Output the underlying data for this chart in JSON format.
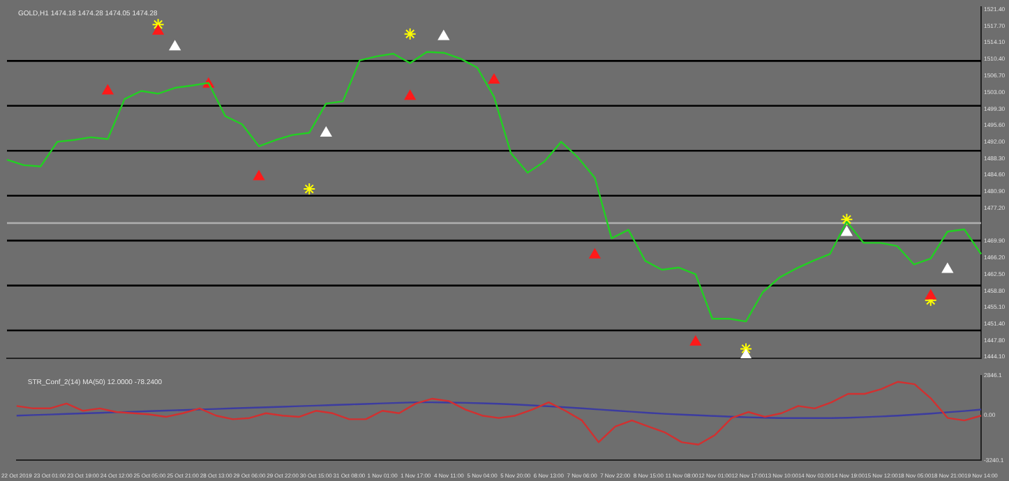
{
  "chart_data": [
    {
      "type": "line",
      "title": "GOLD,H1 1474.18 1474.28 1474.05 1474.28",
      "categories": [
        null,
        null,
        null,
        null,
        null,
        null,
        null,
        null,
        null,
        null,
        null,
        null,
        null,
        null,
        null,
        null,
        null,
        null,
        null,
        null,
        null,
        null,
        null,
        null,
        null,
        null,
        null,
        null,
        null,
        null,
        null,
        null,
        null,
        null,
        null,
        null,
        null,
        null,
        null,
        null,
        null,
        null,
        null,
        null,
        null,
        null,
        null,
        null,
        null,
        null,
        null,
        null,
        null,
        null,
        null,
        null,
        null,
        null,
        null
      ],
      "series": [
        {
          "type": "line",
          "color": "#22d022",
          "values": [
            1488.0,
            1486.8,
            1486.5,
            1492.0,
            1492.4,
            1493.0,
            1492.6,
            1501.5,
            1503.3,
            1502.7,
            1504.0,
            1504.5,
            1505.1,
            1497.7,
            1495.9,
            1491.0,
            1492.4,
            1493.5,
            1494.0,
            1500.5,
            1501.0,
            1510.1,
            1511.0,
            1511.6,
            1509.5,
            1512.0,
            1511.8,
            1510.5,
            1508.5,
            1502.0,
            1489.5,
            1485.1,
            1487.6,
            1492.0,
            1488.5,
            1484.0,
            1470.5,
            1472.4,
            1465.5,
            1463.5,
            1464.0,
            1462.5,
            1452.6,
            1452.6,
            1452.0,
            1458.5,
            1461.8,
            1463.8,
            1465.5,
            1467.0,
            1474.2,
            1469.5,
            1469.5,
            1468.8,
            1464.7,
            1466.0,
            1472.0,
            1472.5,
            1467.0
          ]
        },
        {
          "type": "scatter",
          "color": "#ff1a1a",
          "marker": "triangle",
          "values": [
            null,
            null,
            null,
            null,
            null,
            null,
            1503.3,
            null,
            null,
            1516.6,
            null,
            null,
            1504.8,
            null,
            null,
            1484.2,
            null,
            null,
            null,
            null,
            null,
            null,
            null,
            null,
            1502.1,
            null,
            null,
            null,
            null,
            1505.7,
            null,
            null,
            null,
            null,
            null,
            1466.8,
            null,
            null,
            null,
            null,
            null,
            1447.4,
            null,
            null,
            null,
            null,
            null,
            null,
            null,
            null,
            null,
            null,
            null,
            null,
            null,
            1457.7,
            null,
            null,
            null
          ]
        },
        {
          "type": "scatter",
          "color": "#ffffff",
          "marker": "triangle",
          "values": [
            null,
            null,
            null,
            null,
            null,
            null,
            null,
            null,
            null,
            null,
            1513.1,
            null,
            null,
            null,
            null,
            null,
            null,
            null,
            null,
            1493.9,
            null,
            null,
            null,
            null,
            null,
            null,
            1515.4,
            null,
            null,
            null,
            null,
            null,
            null,
            null,
            null,
            null,
            null,
            null,
            null,
            null,
            null,
            null,
            null,
            null,
            1444.4,
            null,
            null,
            null,
            null,
            null,
            1471.8,
            null,
            null,
            null,
            null,
            null,
            1463.6,
            null,
            null
          ]
        },
        {
          "type": "scatter",
          "color": "#ffff00",
          "marker": "cross",
          "values": [
            null,
            null,
            null,
            null,
            null,
            null,
            null,
            null,
            null,
            1518.1,
            null,
            null,
            null,
            null,
            null,
            null,
            null,
            null,
            1481.5,
            null,
            null,
            null,
            null,
            null,
            1516.0,
            null,
            null,
            null,
            null,
            null,
            null,
            null,
            null,
            null,
            null,
            null,
            null,
            null,
            null,
            null,
            null,
            null,
            null,
            null,
            1445.9,
            null,
            null,
            null,
            null,
            null,
            1474.7,
            null,
            null,
            null,
            null,
            1456.7,
            null,
            null,
            null
          ]
        }
      ],
      "ylim": [
        1443.8,
        1522.0
      ],
      "yticks": [
        {
          "value": 1521.4,
          "label": "1521.40"
        },
        {
          "value": 1517.7,
          "label": "1517.70"
        },
        {
          "value": 1514.1,
          "label": "1514.10"
        },
        {
          "value": 1510.4,
          "label": "1510.40"
        },
        {
          "value": 1506.7,
          "label": "1506.70"
        },
        {
          "value": 1503,
          "label": "1503.00"
        },
        {
          "value": 1499.3,
          "label": "1499.30"
        },
        {
          "value": 1495.6,
          "label": "1495.60"
        },
        {
          "value": 1492,
          "label": "1492.00"
        },
        {
          "value": 1488.3,
          "label": "1488.30"
        },
        {
          "value": 1484.6,
          "label": "1484.60"
        },
        {
          "value": 1480.9,
          "label": "1480.90"
        },
        {
          "value": 1477.2,
          "label": "1477.20"
        },
        {
          "value": 1469.9,
          "label": "1469.90"
        },
        {
          "value": 1466.2,
          "label": "1466.20"
        },
        {
          "value": 1462.5,
          "label": "1462.50"
        },
        {
          "value": 1458.8,
          "label": "1458.80"
        },
        {
          "value": 1455.1,
          "label": "1455.10"
        },
        {
          "value": 1451.4,
          "label": "1451.40"
        },
        {
          "value": 1447.8,
          "label": "1447.80"
        },
        {
          "value": 1444.1,
          "label": "1444.10"
        }
      ],
      "ref_lines": [
        {
          "axis": "y",
          "value": 1510,
          "color": "#000000"
        },
        {
          "axis": "y",
          "value": 1500,
          "color": "#000000"
        },
        {
          "axis": "y",
          "value": 1490,
          "color": "#000000"
        },
        {
          "axis": "y",
          "value": 1480,
          "color": "#000000"
        },
        {
          "axis": "y",
          "value": 1470,
          "color": "#000000"
        },
        {
          "axis": "y",
          "value": 1460,
          "color": "#000000"
        },
        {
          "axis": "y",
          "value": 1450,
          "color": "#000000"
        },
        {
          "axis": "y",
          "value": 1473.9,
          "color": "#b0b0b0"
        }
      ],
      "tick_labels": "y"
    },
    {
      "type": "line",
      "title": "STR_Conf_2(14) MA(50) 12.0000 -78.2400",
      "categories": [
        "22 Oct 2019",
        null,
        "23 Oct 01:00",
        null,
        "23 Oct 19:00",
        null,
        "24 Oct 12:00",
        null,
        "25 Oct 05:00",
        null,
        "25 Oct 21:00",
        null,
        "28 Oct 13:00",
        null,
        "29 Oct 06:00",
        null,
        "29 Oct 22:00",
        null,
        "30 Oct 15:00",
        null,
        "31 Oct 08:00",
        null,
        "1 Nov 01:00",
        null,
        "1 Nov 17:00",
        null,
        "4 Nov 11:00",
        null,
        "5 Nov 04:00",
        null,
        "5 Nov 20:00",
        null,
        "6 Nov 13:00",
        null,
        "7 Nov 06:00",
        null,
        "7 Nov 22:00",
        null,
        "8 Nov 15:00",
        null,
        "11 Nov 08:00",
        null,
        "12 Nov 01:00",
        null,
        "12 Nov 17:00",
        null,
        "13 Nov 10:00",
        null,
        "14 Nov 03:00",
        null,
        "14 Nov 19:00",
        null,
        "15 Nov 12:00",
        null,
        "18 Nov 05:00",
        null,
        "18 Nov 21:00",
        null,
        "19 Nov 14:00"
      ],
      "series": [
        {
          "color": "#d23030",
          "values": [
            673,
            500,
            500,
            847,
            326,
            500,
            239,
            152,
            65,
            -108,
            152,
            500,
            -22,
            -282,
            -195,
            152,
            -22,
            -108,
            326,
            152,
            -282,
            -282,
            326,
            152,
            847,
            1195,
            1021,
            413,
            -22,
            -195,
            -22,
            413,
            934,
            326,
            -369,
            -1934,
            -804,
            -369,
            -804,
            -1238,
            -1934,
            -2107,
            -1412,
            -195,
            239,
            -108,
            152,
            673,
            500,
            934,
            1543,
            1543,
            1890,
            2412,
            2238,
            1195,
            -195,
            -369,
            -22
          ]
        },
        {
          "color": "#3c3ca0",
          "values": [
            -22,
            20,
            60,
            100,
            140,
            180,
            220,
            260,
            300,
            340,
            380,
            420,
            460,
            500,
            540,
            580,
            620,
            660,
            700,
            740,
            780,
            820,
            860,
            900,
            934,
            934,
            920,
            900,
            870,
            830,
            780,
            720,
            650,
            580,
            500,
            420,
            340,
            260,
            180,
            110,
            50,
            0,
            -50,
            -100,
            -140,
            -170,
            -195,
            -200,
            -200,
            -195,
            -170,
            -130,
            -80,
            -20,
            50,
            130,
            220,
            310,
            413
          ]
        }
      ],
      "ylim": [
        -3240.1,
        2846.1
      ],
      "yticks": [
        2846.1,
        {
          "value": 0,
          "label": "0.00"
        },
        -3240.1
      ]
    }
  ]
}
